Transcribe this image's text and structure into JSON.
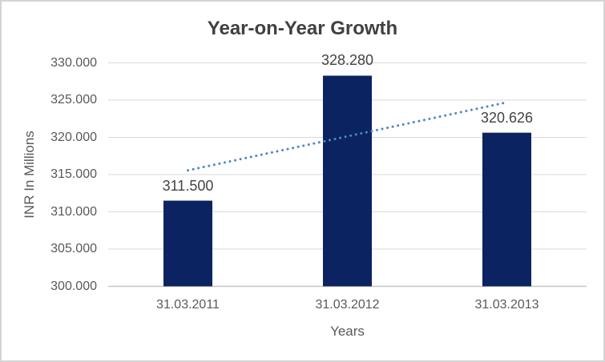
{
  "window": {
    "background": "#ffffff",
    "border_color": "#d4d4d4"
  },
  "chart_data": {
    "type": "bar",
    "title": "Year-on-Year Growth",
    "categories": [
      "31.03.2011",
      "31.03.2012",
      "31.03.2013"
    ],
    "values": [
      311.5,
      328.28,
      320.626
    ],
    "value_labels": [
      "311.500",
      "328.280",
      "320.626"
    ],
    "xlabel": "Years",
    "ylabel": "INR In Millions",
    "ylim": [
      300,
      330
    ],
    "ytick_step": 5,
    "ytick_labels": [
      "300.000",
      "305.000",
      "310.000",
      "315.000",
      "320.000",
      "325.000",
      "330.000"
    ],
    "grid": true,
    "legend": "none",
    "bar_color": "#0b2361",
    "trendline": {
      "style": "dotted",
      "color": "#4f86c6",
      "start_value": 315.57,
      "end_value": 324.7
    },
    "colors": {
      "gridline": "#d9d9d9",
      "axis_line": "#c6c6c6",
      "title_text": "#404040",
      "data_label_text": "#444444",
      "tick_text": "#595959",
      "axis_title_text": "#595959"
    }
  }
}
